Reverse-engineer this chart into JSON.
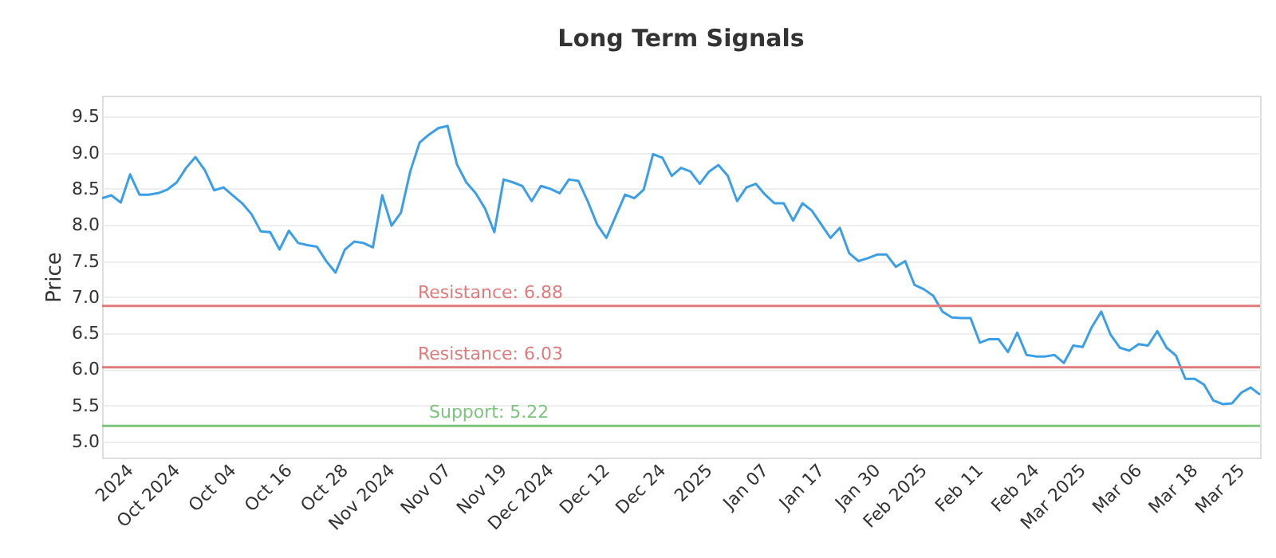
{
  "chart_data": {
    "type": "line",
    "title": "Long Term Signals",
    "ylabel": "Price",
    "categories": [
      null,
      null,
      null,
      "2024",
      null,
      null,
      null,
      null,
      "Oct 2024",
      null,
      null,
      null,
      null,
      null,
      "Oct 04",
      null,
      null,
      null,
      null,
      null,
      "Oct 16",
      null,
      null,
      null,
      null,
      null,
      "Oct 28",
      null,
      null,
      null,
      null,
      "Nov 2024",
      null,
      null,
      null,
      null,
      null,
      "Nov 07",
      null,
      null,
      null,
      null,
      null,
      "Nov 19",
      null,
      null,
      null,
      null,
      "Dec 2024",
      null,
      null,
      null,
      null,
      null,
      "Dec 12",
      null,
      null,
      null,
      null,
      null,
      "Dec 24",
      null,
      null,
      null,
      null,
      "2025",
      null,
      null,
      null,
      null,
      null,
      "Jan 07",
      null,
      null,
      null,
      null,
      null,
      "Jan 17",
      null,
      null,
      null,
      null,
      null,
      "Jan 30",
      null,
      null,
      null,
      null,
      "Feb 2025",
      null,
      null,
      null,
      null,
      null,
      "Feb 11",
      null,
      null,
      null,
      null,
      null,
      "Feb 24",
      null,
      null,
      null,
      null,
      "Mar 2025",
      null,
      null,
      null,
      null,
      null,
      "Mar 06",
      null,
      null,
      null,
      null,
      null,
      "Mar 18",
      null,
      null,
      null,
      null,
      "Mar 25",
      null,
      null
    ],
    "series": [
      {
        "color": "#3a9fe6",
        "values": [
          8.37,
          8.41,
          8.31,
          8.7,
          8.42,
          8.42,
          8.44,
          8.49,
          8.59,
          8.79,
          8.94,
          8.76,
          8.48,
          8.52,
          8.41,
          8.3,
          8.15,
          7.91,
          7.9,
          7.66,
          7.92,
          7.75,
          7.72,
          7.7,
          7.5,
          7.34,
          7.66,
          7.77,
          7.75,
          7.69,
          8.41,
          7.99,
          8.17,
          8.74,
          9.14,
          9.25,
          9.34,
          9.37,
          8.84,
          8.59,
          8.44,
          8.23,
          7.9,
          8.63,
          8.59,
          8.54,
          8.33,
          8.54,
          8.5,
          8.44,
          8.63,
          8.61,
          8.33,
          8.01,
          7.82,
          8.12,
          8.42,
          8.37,
          8.49,
          8.98,
          8.93,
          8.68,
          8.79,
          8.74,
          8.57,
          8.74,
          8.83,
          8.68,
          8.33,
          8.52,
          8.57,
          8.42,
          8.3,
          8.3,
          8.06,
          8.3,
          8.2,
          8.01,
          7.82,
          7.96,
          7.61,
          7.5,
          7.54,
          7.59,
          7.59,
          7.42,
          7.5,
          7.17,
          7.11,
          7.02,
          6.8,
          6.72,
          6.71,
          6.71,
          6.37,
          6.42,
          6.42,
          6.24,
          6.51,
          6.2,
          6.18,
          6.18,
          6.2,
          6.09,
          6.33,
          6.31,
          6.59,
          6.8,
          6.48,
          6.3,
          6.26,
          6.35,
          6.33,
          6.53,
          6.3,
          6.19,
          5.87,
          5.87,
          5.79,
          5.57,
          5.52,
          5.53,
          5.68,
          5.75,
          5.65
        ]
      }
    ],
    "ylim": [
      4.78,
      9.79
    ],
    "yticks": [
      {
        "value": 5,
        "label": "5.0"
      },
      {
        "value": 5.5,
        "label": "5.5"
      },
      {
        "value": 6,
        "label": "6.0"
      },
      {
        "value": 6.5,
        "label": "6.5"
      },
      {
        "value": 7,
        "label": "7.0"
      },
      {
        "value": 7.5,
        "label": "7.5"
      },
      {
        "value": 8,
        "label": "8.0"
      },
      {
        "value": 8.5,
        "label": "8.5"
      },
      {
        "value": 9,
        "label": "9.0"
      },
      {
        "value": 9.5,
        "label": "9.5"
      }
    ],
    "ref_lines": [
      {
        "axis": "y",
        "value": 6.88,
        "label": "Resistance: 6.88",
        "color": "#e07b7b"
      },
      {
        "axis": "y",
        "value": 6.03,
        "label": "Resistance: 6.03",
        "color": "#e07b7b"
      },
      {
        "axis": "y",
        "value": 5.22,
        "label": "Support: 5.22",
        "color": "#7cc47c"
      }
    ],
    "grid": "y",
    "marker": "none",
    "line_style": "solid"
  }
}
